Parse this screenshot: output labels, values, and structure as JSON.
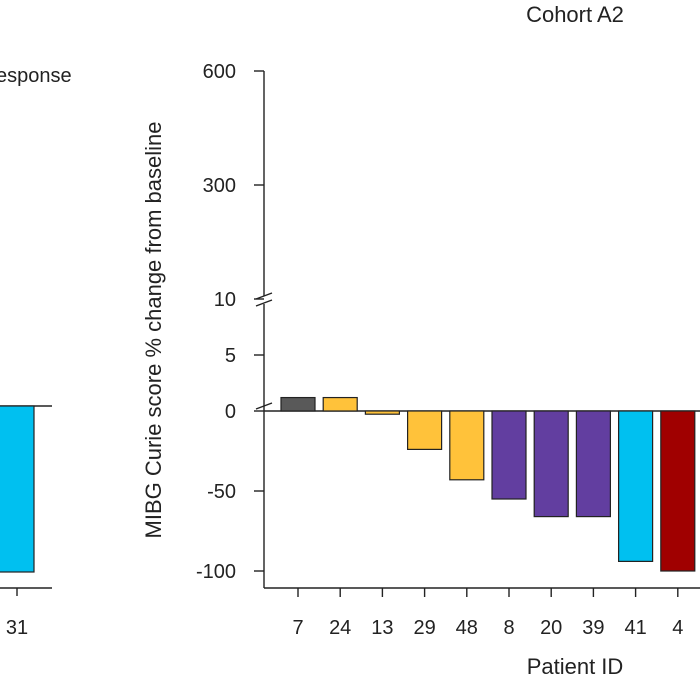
{
  "chart_data": [
    {
      "type": "bar",
      "title": "",
      "legend_text_fragment": "esponse",
      "categories": [
        "31"
      ],
      "series": [
        {
          "values": [
            -100
          ],
          "colors": [
            "#00c0f0"
          ]
        }
      ],
      "ylim": [
        -100,
        0
      ]
    },
    {
      "type": "bar",
      "title": "Cohort A2",
      "xlabel": "Patient ID",
      "ylabel": "MIBG Curie score % change from baseline",
      "y_axis_break": [
        10,
        300
      ],
      "yticks": [
        "600",
        "300",
        "10",
        "5",
        "0",
        "-50",
        "-100"
      ],
      "ylim": [
        -100,
        600
      ],
      "categories": [
        "7",
        "24",
        "13",
        "29",
        "48",
        "8",
        "20",
        "39",
        "41",
        "4"
      ],
      "series": [
        {
          "values": [
            1.2,
            1.2,
            -2,
            -24,
            -43,
            -55,
            -66,
            -66,
            -94,
            -100
          ],
          "colors": [
            "#595959",
            "#ffc23a",
            "#ffc23a",
            "#ffc23a",
            "#ffc23a",
            "#623ea0",
            "#623ea0",
            "#623ea0",
            "#00c0f0",
            "#a00000"
          ]
        }
      ]
    }
  ]
}
